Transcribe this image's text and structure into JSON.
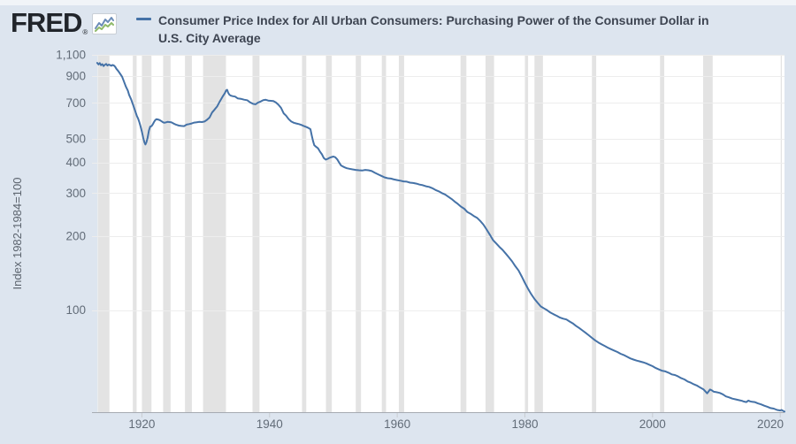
{
  "header": {
    "logo": "FRED",
    "logo_reg": "®",
    "title_lines": [
      "Consumer Price Index for All Urban Consumers: Purchasing Power of the Consumer Dollar in",
      "U.S. City Average"
    ]
  },
  "chart_data": {
    "type": "line",
    "title": "Consumer Price Index for All Urban Consumers: Purchasing Power of the Consumer Dollar in U.S. City Average",
    "ylabel": "Index 1982-1984=100",
    "y_scale": "log",
    "x_range": [
      1913.04,
      2020.67
    ],
    "y_range": [
      38.3,
      1100
    ],
    "x_ticks": [
      1920,
      1940,
      1960,
      1980,
      2000,
      2020
    ],
    "x_tick_labels": [
      "1920",
      "1940",
      "1960",
      "1980",
      "2000",
      "2020"
    ],
    "y_ticks": [
      100,
      200,
      300,
      400,
      500,
      700,
      900,
      1100
    ],
    "y_tick_labels": [
      "100",
      "200",
      "300",
      "400",
      "500",
      "700",
      "900",
      "1,100"
    ],
    "grid": true,
    "legend_position": "top",
    "line_color": "#4572a7",
    "recession_color": "#e3e3e3",
    "grid_color": "#ededed",
    "axis_line_color": "#a6abb2",
    "tick_mark_color": "#c8ccd2",
    "recessions": [
      [
        1913.08,
        1914.92
      ],
      [
        1918.58,
        1919.17
      ],
      [
        1920.0,
        1921.5
      ],
      [
        1923.33,
        1924.5
      ],
      [
        1926.75,
        1927.83
      ],
      [
        1929.58,
        1933.17
      ],
      [
        1937.33,
        1938.42
      ],
      [
        1945.08,
        1945.75
      ],
      [
        1948.83,
        1949.75
      ],
      [
        1953.5,
        1954.33
      ],
      [
        1957.58,
        1958.25
      ],
      [
        1960.25,
        1961.08
      ],
      [
        1969.92,
        1970.83
      ],
      [
        1973.83,
        1975.17
      ],
      [
        1980.0,
        1980.5
      ],
      [
        1981.5,
        1982.83
      ],
      [
        1990.5,
        1991.17
      ],
      [
        2001.17,
        2001.83
      ],
      [
        2007.92,
        2009.42
      ],
      [
        2020.08,
        2020.25
      ]
    ],
    "series": [
      {
        "name": "Consumer Price Index for All Urban Consumers: Purchasing Power of the Consumer Dollar in U.S. City Average",
        "points": [
          [
            1913.0,
            1020
          ],
          [
            1913.2,
            1005
          ],
          [
            1913.4,
            1018
          ],
          [
            1913.6,
            998
          ],
          [
            1913.8,
            1008
          ],
          [
            1914.0,
            990
          ],
          [
            1914.2,
            1002
          ],
          [
            1914.4,
            1010
          ],
          [
            1914.6,
            995
          ],
          [
            1914.8,
            1003
          ],
          [
            1915.0,
            1000
          ],
          [
            1915.2,
            992
          ],
          [
            1915.4,
            1000
          ],
          [
            1915.6,
            996
          ],
          [
            1915.8,
            985
          ],
          [
            1916.0,
            965
          ],
          [
            1916.3,
            945
          ],
          [
            1916.6,
            920
          ],
          [
            1916.9,
            895
          ],
          [
            1917.2,
            855
          ],
          [
            1917.5,
            815
          ],
          [
            1917.8,
            785
          ],
          [
            1918.0,
            755
          ],
          [
            1918.3,
            725
          ],
          [
            1918.6,
            690
          ],
          [
            1918.9,
            655
          ],
          [
            1919.2,
            620
          ],
          [
            1919.4,
            605
          ],
          [
            1919.6,
            585
          ],
          [
            1919.8,
            560
          ],
          [
            1920.0,
            535
          ],
          [
            1920.2,
            505
          ],
          [
            1920.4,
            483
          ],
          [
            1920.55,
            474
          ],
          [
            1920.7,
            483
          ],
          [
            1920.9,
            505
          ],
          [
            1921.1,
            540
          ],
          [
            1921.3,
            560
          ],
          [
            1921.5,
            563
          ],
          [
            1921.7,
            572
          ],
          [
            1921.9,
            585
          ],
          [
            1922.1,
            596
          ],
          [
            1922.3,
            601
          ],
          [
            1922.5,
            599
          ],
          [
            1922.7,
            597
          ],
          [
            1922.9,
            593
          ],
          [
            1923.1,
            589
          ],
          [
            1923.3,
            584
          ],
          [
            1923.5,
            581
          ],
          [
            1923.75,
            583
          ],
          [
            1924.0,
            586
          ],
          [
            1924.3,
            585
          ],
          [
            1924.6,
            584
          ],
          [
            1925.0,
            576
          ],
          [
            1925.4,
            570
          ],
          [
            1925.8,
            566
          ],
          [
            1926.2,
            564
          ],
          [
            1926.6,
            563
          ],
          [
            1927.0,
            571
          ],
          [
            1927.4,
            574
          ],
          [
            1927.8,
            577
          ],
          [
            1928.2,
            582
          ],
          [
            1928.6,
            584
          ],
          [
            1929.0,
            586
          ],
          [
            1929.4,
            585
          ],
          [
            1929.8,
            588
          ],
          [
            1930.2,
            597
          ],
          [
            1930.6,
            610
          ],
          [
            1931.0,
            640
          ],
          [
            1931.4,
            658
          ],
          [
            1931.8,
            678
          ],
          [
            1932.2,
            710
          ],
          [
            1932.6,
            740
          ],
          [
            1933.0,
            768
          ],
          [
            1933.2,
            788
          ],
          [
            1933.35,
            792
          ],
          [
            1933.5,
            772
          ],
          [
            1933.7,
            757
          ],
          [
            1933.9,
            750
          ],
          [
            1934.2,
            746
          ],
          [
            1934.6,
            743
          ],
          [
            1935.0,
            731
          ],
          [
            1935.5,
            728
          ],
          [
            1936.0,
            722
          ],
          [
            1936.5,
            718
          ],
          [
            1937.0,
            703
          ],
          [
            1937.4,
            694
          ],
          [
            1937.8,
            691
          ],
          [
            1938.2,
            703
          ],
          [
            1938.6,
            709
          ],
          [
            1939.0,
            719
          ],
          [
            1939.4,
            721
          ],
          [
            1939.8,
            716
          ],
          [
            1940.2,
            714
          ],
          [
            1940.6,
            712
          ],
          [
            1941.0,
            703
          ],
          [
            1941.4,
            688
          ],
          [
            1941.8,
            668
          ],
          [
            1942.2,
            635
          ],
          [
            1942.6,
            621
          ],
          [
            1943.0,
            601
          ],
          [
            1943.4,
            588
          ],
          [
            1943.8,
            581
          ],
          [
            1944.2,
            577
          ],
          [
            1944.6,
            574
          ],
          [
            1945.0,
            569
          ],
          [
            1945.4,
            563
          ],
          [
            1945.8,
            558
          ],
          [
            1946.1,
            553
          ],
          [
            1946.4,
            547
          ],
          [
            1946.6,
            517
          ],
          [
            1946.8,
            490
          ],
          [
            1947.0,
            471
          ],
          [
            1947.3,
            463
          ],
          [
            1947.6,
            457
          ],
          [
            1947.9,
            443
          ],
          [
            1948.2,
            432
          ],
          [
            1948.5,
            417
          ],
          [
            1948.8,
            411
          ],
          [
            1949.1,
            414
          ],
          [
            1949.4,
            418
          ],
          [
            1949.7,
            421
          ],
          [
            1950.0,
            423
          ],
          [
            1950.3,
            420
          ],
          [
            1950.6,
            412
          ],
          [
            1950.9,
            400
          ],
          [
            1951.2,
            389
          ],
          [
            1951.5,
            385
          ],
          [
            1951.8,
            382
          ],
          [
            1952.1,
            379
          ],
          [
            1952.5,
            377
          ],
          [
            1953.0,
            375
          ],
          [
            1953.5,
            373
          ],
          [
            1954.0,
            372
          ],
          [
            1954.5,
            371
          ],
          [
            1955.0,
            373
          ],
          [
            1955.5,
            372
          ],
          [
            1956.0,
            369
          ],
          [
            1956.5,
            363
          ],
          [
            1957.0,
            358
          ],
          [
            1957.5,
            353
          ],
          [
            1958.0,
            348
          ],
          [
            1958.5,
            345
          ],
          [
            1959.0,
            344
          ],
          [
            1959.5,
            341
          ],
          [
            1960.0,
            339
          ],
          [
            1960.5,
            337
          ],
          [
            1961.0,
            335
          ],
          [
            1961.5,
            334
          ],
          [
            1962.0,
            331
          ],
          [
            1962.5,
            330
          ],
          [
            1963.0,
            328
          ],
          [
            1963.5,
            325
          ],
          [
            1964.0,
            323
          ],
          [
            1964.5,
            320
          ],
          [
            1965.0,
            318
          ],
          [
            1965.5,
            314
          ],
          [
            1966.0,
            309
          ],
          [
            1966.5,
            305
          ],
          [
            1967.0,
            300
          ],
          [
            1967.5,
            296
          ],
          [
            1968.0,
            290
          ],
          [
            1968.5,
            284
          ],
          [
            1969.0,
            277
          ],
          [
            1969.5,
            271
          ],
          [
            1970.0,
            264
          ],
          [
            1970.5,
            259
          ],
          [
            1971.0,
            251
          ],
          [
            1971.5,
            247
          ],
          [
            1972.0,
            242
          ],
          [
            1972.5,
            238
          ],
          [
            1973.0,
            231
          ],
          [
            1973.5,
            223
          ],
          [
            1974.0,
            213
          ],
          [
            1974.5,
            203
          ],
          [
            1975.0,
            193
          ],
          [
            1975.5,
            187
          ],
          [
            1976.0,
            181
          ],
          [
            1976.5,
            176
          ],
          [
            1977.0,
            170
          ],
          [
            1977.5,
            164
          ],
          [
            1978.0,
            158
          ],
          [
            1978.5,
            151
          ],
          [
            1979.0,
            145
          ],
          [
            1979.5,
            137
          ],
          [
            1980.0,
            129
          ],
          [
            1980.5,
            122
          ],
          [
            1981.0,
            116
          ],
          [
            1981.5,
            111
          ],
          [
            1982.0,
            107
          ],
          [
            1982.5,
            103.4
          ],
          [
            1983.0,
            101.5
          ],
          [
            1983.5,
            99.8
          ],
          [
            1984.0,
            97.6
          ],
          [
            1984.5,
            96.1
          ],
          [
            1985.0,
            94.7
          ],
          [
            1985.5,
            93.1
          ],
          [
            1986.0,
            92.2
          ],
          [
            1986.5,
            91.5
          ],
          [
            1987.0,
            89.8
          ],
          [
            1987.5,
            88.2
          ],
          [
            1988.0,
            86.2
          ],
          [
            1988.5,
            84.5
          ],
          [
            1989.0,
            82.6
          ],
          [
            1989.5,
            80.8
          ],
          [
            1990.0,
            78.9
          ],
          [
            1990.5,
            77.0
          ],
          [
            1991.0,
            75.2
          ],
          [
            1991.5,
            73.7
          ],
          [
            1992.0,
            72.5
          ],
          [
            1992.5,
            71.4
          ],
          [
            1993.0,
            70.2
          ],
          [
            1993.5,
            69.2
          ],
          [
            1994.0,
            68.3
          ],
          [
            1994.5,
            67.4
          ],
          [
            1995.0,
            66.3
          ],
          [
            1995.5,
            65.5
          ],
          [
            1996.0,
            64.5
          ],
          [
            1996.5,
            63.5
          ],
          [
            1997.0,
            62.8
          ],
          [
            1997.5,
            62.2
          ],
          [
            1998.0,
            61.7
          ],
          [
            1998.5,
            61.2
          ],
          [
            1999.0,
            60.6
          ],
          [
            1999.5,
            59.8
          ],
          [
            2000.0,
            59.0
          ],
          [
            2000.5,
            58.0
          ],
          [
            2001.0,
            57.2
          ],
          [
            2001.5,
            56.5
          ],
          [
            2002.0,
            56.2
          ],
          [
            2002.5,
            55.5
          ],
          [
            2003.0,
            54.6
          ],
          [
            2003.5,
            54.3
          ],
          [
            2004.0,
            53.6
          ],
          [
            2004.5,
            52.7
          ],
          [
            2005.0,
            52.1
          ],
          [
            2005.5,
            51.1
          ],
          [
            2006.0,
            50.5
          ],
          [
            2006.5,
            49.7
          ],
          [
            2007.0,
            49.1
          ],
          [
            2007.5,
            48.2
          ],
          [
            2008.0,
            47.4
          ],
          [
            2008.3,
            46.5
          ],
          [
            2008.55,
            45.7
          ],
          [
            2008.8,
            46.6
          ],
          [
            2009.0,
            47.4
          ],
          [
            2009.3,
            47.0
          ],
          [
            2009.6,
            46.4
          ],
          [
            2010.0,
            46.2
          ],
          [
            2010.5,
            45.9
          ],
          [
            2011.0,
            45.3
          ],
          [
            2011.5,
            44.4
          ],
          [
            2012.0,
            44.0
          ],
          [
            2012.5,
            43.5
          ],
          [
            2013.0,
            43.2
          ],
          [
            2013.5,
            42.9
          ],
          [
            2014.0,
            42.6
          ],
          [
            2014.3,
            42.3
          ],
          [
            2014.7,
            42.1
          ],
          [
            2015.0,
            42.7
          ],
          [
            2015.3,
            42.4
          ],
          [
            2015.6,
            42.2
          ],
          [
            2016.0,
            42.1
          ],
          [
            2016.5,
            41.6
          ],
          [
            2017.0,
            41.2
          ],
          [
            2017.5,
            40.7
          ],
          [
            2018.0,
            40.3
          ],
          [
            2018.5,
            39.8
          ],
          [
            2019.0,
            39.6
          ],
          [
            2019.5,
            39.1
          ],
          [
            2020.0,
            38.9
          ],
          [
            2020.2,
            39.1
          ],
          [
            2020.4,
            38.8
          ],
          [
            2020.67,
            38.5
          ]
        ]
      }
    ]
  }
}
